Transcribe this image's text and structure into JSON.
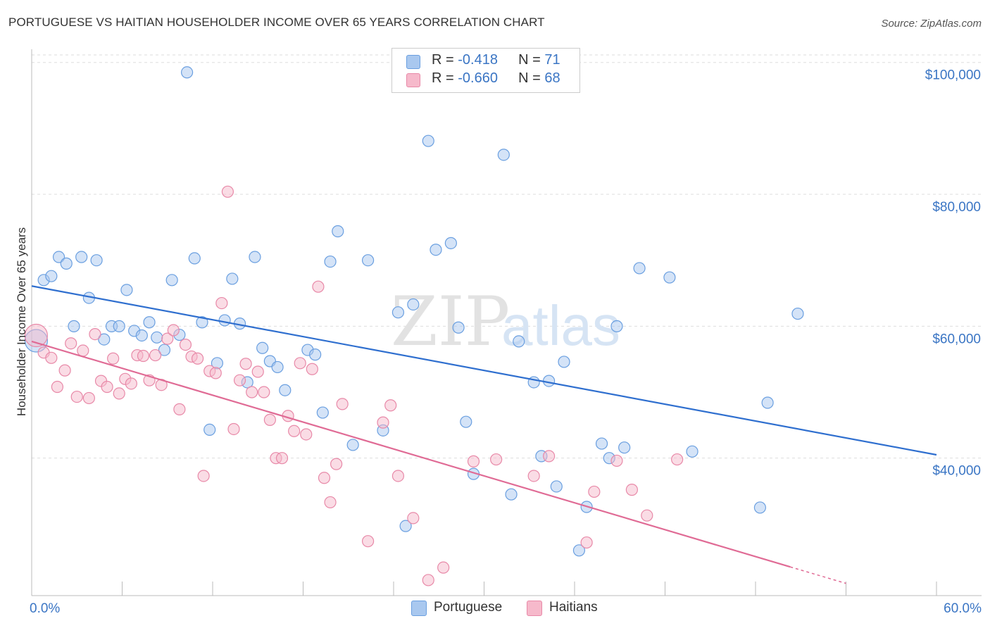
{
  "title": "PORTUGUESE VS HAITIAN HOUSEHOLDER INCOME OVER 65 YEARS CORRELATION CHART",
  "source": "Source: ZipAtlas.com",
  "watermark": {
    "zip": "ZIP",
    "atlas": "atlas"
  },
  "legend": {
    "rows": [
      {
        "r_label": "R = ",
        "r_value": "-0.418",
        "n_label": "N = ",
        "n_value": "71",
        "color": "#a9c8ef",
        "stroke": "#6a9fe0"
      },
      {
        "r_label": "R = ",
        "r_value": "-0.660",
        "n_label": "N = ",
        "n_value": "68",
        "color": "#f6b9cb",
        "stroke": "#e889a8"
      }
    ]
  },
  "bottom_legend": [
    "Portuguese",
    "Haitians"
  ],
  "chart_data": {
    "type": "scatter",
    "ylabel": "Householder Income Over 65 years",
    "xlim": [
      0,
      60
    ],
    "ylim": [
      20000,
      102000
    ],
    "x_tick_labels": [
      "0.0%",
      "60.0%"
    ],
    "y_ticks": [
      {
        "value": 40000,
        "label": "$40,000"
      },
      {
        "value": 60000,
        "label": "$60,000"
      },
      {
        "value": 80000,
        "label": "$80,000"
      },
      {
        "value": 100000,
        "label": "$100,000"
      }
    ],
    "grid": true,
    "series": [
      {
        "name": "Portuguese",
        "color": "#a9c8ef",
        "stroke": "#6a9fe0",
        "line_color": "#2f6fcf",
        "trend": {
          "x0": 0,
          "y0": 66100,
          "x1": 60,
          "y1": 40500
        },
        "points": [
          [
            0.3,
            57800
          ],
          [
            0.8,
            67000
          ],
          [
            1.3,
            67600
          ],
          [
            1.8,
            70500
          ],
          [
            2.3,
            69500
          ],
          [
            2.8,
            60000
          ],
          [
            3.3,
            70500
          ],
          [
            3.8,
            64300
          ],
          [
            4.3,
            70000
          ],
          [
            4.8,
            58000
          ],
          [
            5.3,
            60000
          ],
          [
            5.8,
            60000
          ],
          [
            6.3,
            65500
          ],
          [
            6.8,
            59300
          ],
          [
            7.3,
            58600
          ],
          [
            7.8,
            60600
          ],
          [
            8.3,
            58300
          ],
          [
            8.8,
            56400
          ],
          [
            9.3,
            67000
          ],
          [
            9.8,
            58700
          ],
          [
            10.3,
            98500
          ],
          [
            10.8,
            70300
          ],
          [
            11.3,
            60600
          ],
          [
            11.8,
            44300
          ],
          [
            12.3,
            54400
          ],
          [
            12.8,
            60900
          ],
          [
            13.3,
            67200
          ],
          [
            13.8,
            60400
          ],
          [
            14.3,
            51500
          ],
          [
            14.8,
            70500
          ],
          [
            15.3,
            56700
          ],
          [
            15.8,
            54700
          ],
          [
            16.3,
            53800
          ],
          [
            16.8,
            50300
          ],
          [
            18.3,
            56400
          ],
          [
            18.8,
            55700
          ],
          [
            19.3,
            46900
          ],
          [
            19.8,
            69800
          ],
          [
            20.3,
            74400
          ],
          [
            21.3,
            42000
          ],
          [
            22.3,
            70000
          ],
          [
            23.3,
            44200
          ],
          [
            24.3,
            62100
          ],
          [
            24.8,
            29700
          ],
          [
            25.3,
            63300
          ],
          [
            26.3,
            88100
          ],
          [
            26.8,
            71600
          ],
          [
            27.8,
            72600
          ],
          [
            28.3,
            59800
          ],
          [
            28.8,
            45500
          ],
          [
            29.3,
            37600
          ],
          [
            31.3,
            86000
          ],
          [
            31.8,
            34500
          ],
          [
            32.3,
            57700
          ],
          [
            33.3,
            51500
          ],
          [
            33.8,
            40300
          ],
          [
            34.3,
            51700
          ],
          [
            34.8,
            35700
          ],
          [
            35.3,
            54600
          ],
          [
            36.3,
            26000
          ],
          [
            36.8,
            32600
          ],
          [
            37.8,
            42200
          ],
          [
            38.3,
            40000
          ],
          [
            38.8,
            60000
          ],
          [
            39.3,
            41600
          ],
          [
            40.3,
            68800
          ],
          [
            42.3,
            67400
          ],
          [
            43.8,
            41000
          ],
          [
            48.3,
            32500
          ],
          [
            48.8,
            48400
          ],
          [
            50.8,
            61900
          ]
        ]
      },
      {
        "name": "Haitians",
        "color": "#f6b9cb",
        "stroke": "#e889a8",
        "line_color": "#e06b95",
        "trend": {
          "x0": 0,
          "y0": 57700,
          "x1": 50.3,
          "y1": 23500
        },
        "trend_dash": {
          "x0": 50.3,
          "y0": 23500,
          "x1": 54,
          "y1": 21000
        },
        "points": [
          [
            0.3,
            58600
          ],
          [
            0.8,
            56000
          ],
          [
            1.3,
            55200
          ],
          [
            1.7,
            50800
          ],
          [
            2.2,
            53300
          ],
          [
            2.6,
            57400
          ],
          [
            3.0,
            49300
          ],
          [
            3.4,
            56300
          ],
          [
            3.8,
            49100
          ],
          [
            4.2,
            58800
          ],
          [
            4.6,
            51700
          ],
          [
            5.0,
            50800
          ],
          [
            5.4,
            55100
          ],
          [
            5.8,
            49800
          ],
          [
            6.2,
            52000
          ],
          [
            6.6,
            51300
          ],
          [
            7.0,
            55600
          ],
          [
            7.4,
            55500
          ],
          [
            7.8,
            51800
          ],
          [
            8.2,
            55600
          ],
          [
            8.6,
            51100
          ],
          [
            9.0,
            58100
          ],
          [
            9.4,
            59400
          ],
          [
            9.8,
            47400
          ],
          [
            10.2,
            57200
          ],
          [
            10.6,
            55400
          ],
          [
            11.0,
            55100
          ],
          [
            11.4,
            37300
          ],
          [
            11.8,
            53200
          ],
          [
            12.2,
            52900
          ],
          [
            12.6,
            63500
          ],
          [
            13.0,
            80400
          ],
          [
            13.4,
            44400
          ],
          [
            13.8,
            51800
          ],
          [
            14.2,
            54300
          ],
          [
            14.6,
            50000
          ],
          [
            15.0,
            53100
          ],
          [
            15.4,
            50000
          ],
          [
            15.8,
            45800
          ],
          [
            16.2,
            40000
          ],
          [
            16.6,
            40000
          ],
          [
            17.0,
            46400
          ],
          [
            17.4,
            44100
          ],
          [
            17.8,
            54400
          ],
          [
            18.2,
            43600
          ],
          [
            18.6,
            53500
          ],
          [
            19.0,
            66000
          ],
          [
            19.4,
            37000
          ],
          [
            19.8,
            33300
          ],
          [
            20.2,
            39100
          ],
          [
            20.6,
            48200
          ],
          [
            22.3,
            27400
          ],
          [
            23.3,
            45400
          ],
          [
            23.8,
            48000
          ],
          [
            24.3,
            37300
          ],
          [
            25.3,
            30900
          ],
          [
            26.3,
            21500
          ],
          [
            27.3,
            23400
          ],
          [
            29.3,
            39500
          ],
          [
            30.8,
            39800
          ],
          [
            33.3,
            37300
          ],
          [
            34.3,
            40300
          ],
          [
            36.8,
            27200
          ],
          [
            37.3,
            34900
          ],
          [
            38.8,
            39600
          ],
          [
            39.8,
            35200
          ],
          [
            40.8,
            31300
          ],
          [
            42.8,
            39800
          ]
        ]
      }
    ]
  }
}
